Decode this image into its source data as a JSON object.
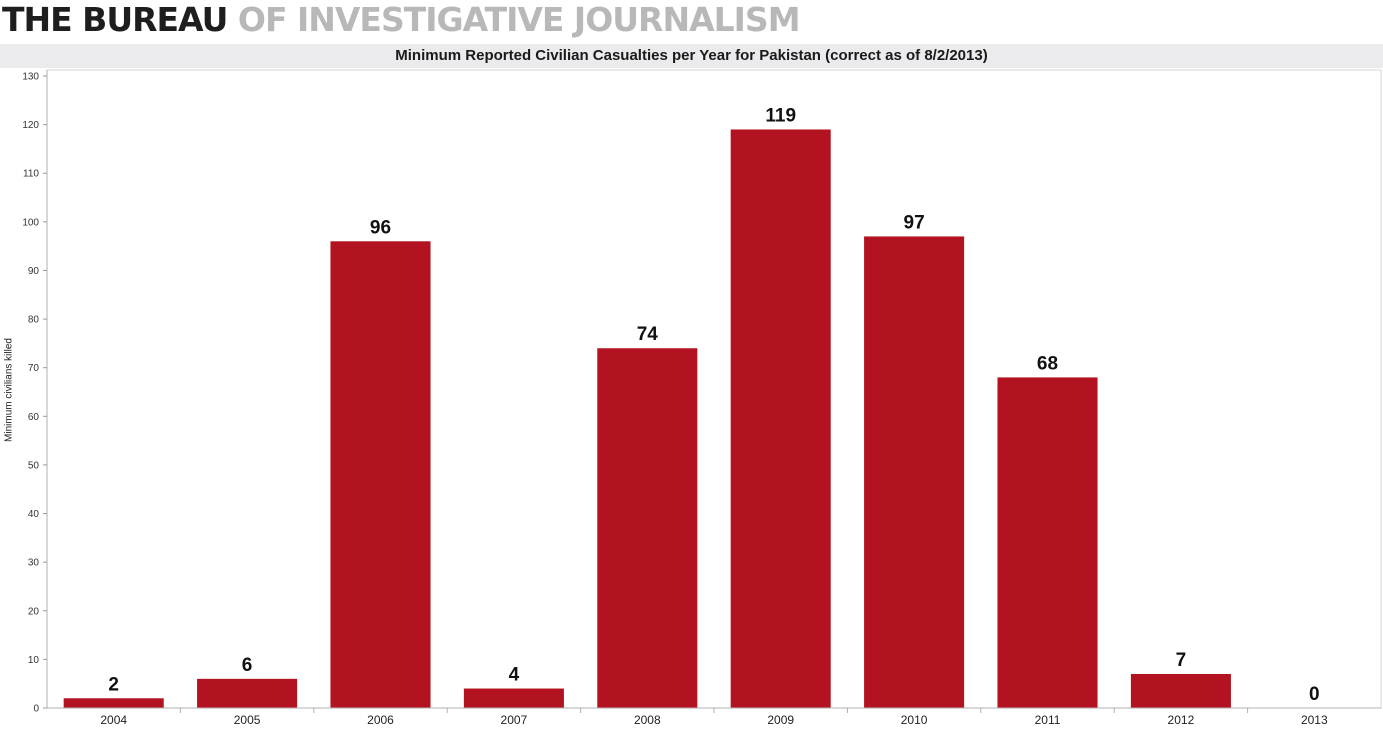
{
  "masthead": {
    "part1": "THE BUREAU",
    "part2": "OF INVESTIGATIVE JOURNALISM"
  },
  "chart_data": {
    "type": "bar",
    "title": "Minimum Reported Civilian Casualties per Year for Pakistan (correct as of 8/2/2013)",
    "xlabel": "",
    "ylabel": "Minimum civilians killed",
    "categories": [
      "2004",
      "2005",
      "2006",
      "2007",
      "2008",
      "2009",
      "2010",
      "2011",
      "2012",
      "2013"
    ],
    "values": [
      2,
      6,
      96,
      4,
      74,
      119,
      97,
      68,
      7,
      0
    ],
    "ylim": [
      0,
      130
    ],
    "yticks": [
      0,
      10,
      20,
      30,
      40,
      50,
      60,
      70,
      80,
      90,
      100,
      110,
      120,
      130
    ],
    "data_labels": true,
    "grid": false,
    "legend": "none",
    "bar_color": "#b31220"
  }
}
